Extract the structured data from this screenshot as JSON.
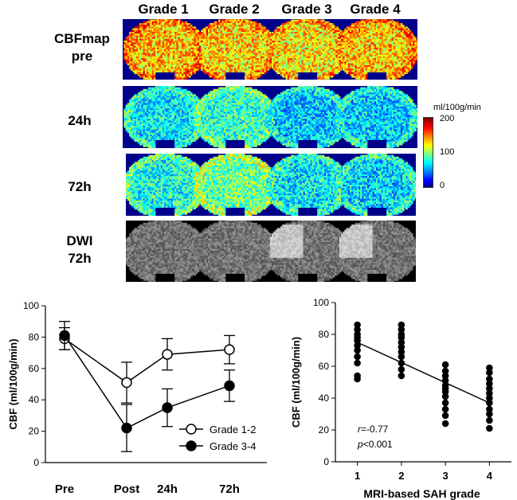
{
  "column_headers": [
    "Grade 1",
    "Grade 2",
    "Grade 3",
    "Grade 4"
  ],
  "row_labels": {
    "pre": [
      "CBFmap",
      "pre"
    ],
    "h24": "24h",
    "h72": "72h",
    "dwi": [
      "DWI",
      "72h"
    ]
  },
  "colorbar": {
    "unit": "ml/100g/min",
    "max_label": "200",
    "mid_label": "100",
    "min_label": "0"
  },
  "chart_data": [
    {
      "type": "line",
      "title": "",
      "xlabel": "",
      "ylabel": "CBF (ml/100g/min)",
      "categories": [
        "Pre",
        "Post",
        "24h",
        "72h"
      ],
      "ylim": [
        0,
        100
      ],
      "yticks": [
        "0",
        "20",
        "40",
        "60",
        "80",
        "100"
      ],
      "series": [
        {
          "name": "Grade 1-2",
          "marker": "open-circle",
          "values": [
            79,
            51,
            69,
            72
          ],
          "errors": [
            7,
            13,
            10,
            9
          ]
        },
        {
          "name": "Grade 3-4",
          "marker": "filled-circle",
          "values": [
            81,
            22,
            35,
            49
          ],
          "errors": [
            9,
            15,
            12,
            10
          ]
        }
      ]
    },
    {
      "type": "scatter",
      "title": "",
      "xlabel": "MRI-based SAH grade",
      "ylabel": "CBF (ml/100g/min)",
      "xlim": [
        0.5,
        4.5
      ],
      "ylim": [
        0,
        100
      ],
      "xticks": [
        "1",
        "2",
        "3",
        "4"
      ],
      "yticks": [
        "0",
        "20",
        "40",
        "60",
        "80",
        "100"
      ],
      "points": [
        [
          1,
          86
        ],
        [
          1,
          83
        ],
        [
          1,
          80
        ],
        [
          1,
          78
        ],
        [
          1,
          76
        ],
        [
          1,
          73
        ],
        [
          1,
          70
        ],
        [
          1,
          66
        ],
        [
          1,
          62
        ],
        [
          1,
          54
        ],
        [
          1,
          52
        ],
        [
          2,
          86
        ],
        [
          2,
          83
        ],
        [
          2,
          80
        ],
        [
          2,
          78
        ],
        [
          2,
          75
        ],
        [
          2,
          72
        ],
        [
          2,
          69
        ],
        [
          2,
          66
        ],
        [
          2,
          62
        ],
        [
          2,
          58
        ],
        [
          2,
          54
        ],
        [
          3,
          61
        ],
        [
          3,
          57
        ],
        [
          3,
          54
        ],
        [
          3,
          51
        ],
        [
          3,
          48
        ],
        [
          3,
          46
        ],
        [
          3,
          44
        ],
        [
          3,
          41
        ],
        [
          3,
          37
        ],
        [
          3,
          33
        ],
        [
          3,
          29
        ],
        [
          3,
          24
        ],
        [
          4,
          59
        ],
        [
          4,
          56
        ],
        [
          4,
          52
        ],
        [
          4,
          49
        ],
        [
          4,
          46
        ],
        [
          4,
          43
        ],
        [
          4,
          40
        ],
        [
          4,
          37
        ],
        [
          4,
          33
        ],
        [
          4,
          30
        ],
        [
          4,
          26
        ],
        [
          4,
          21
        ]
      ],
      "fit_line": {
        "x": [
          1,
          4
        ],
        "y": [
          75,
          37
        ]
      },
      "annotation": {
        "r_label": "r",
        "r_value": "=-0.77",
        "p_label": "p",
        "p_value": "<0.001"
      }
    }
  ]
}
